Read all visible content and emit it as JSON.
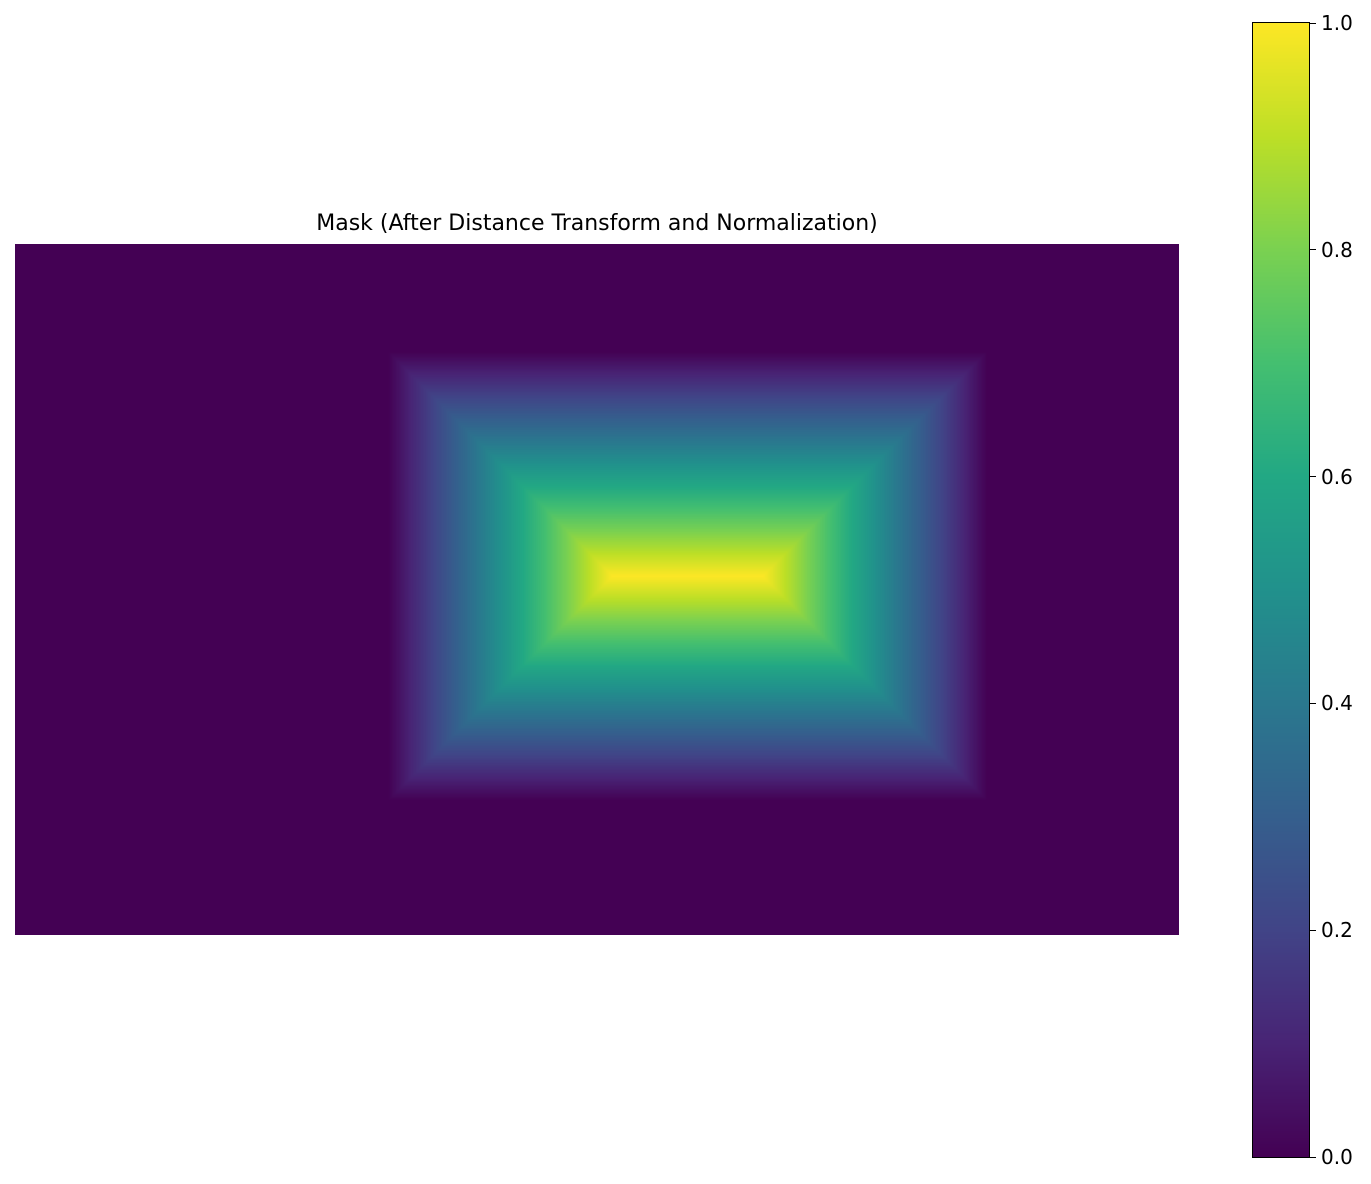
{
  "chart_data": {
    "type": "heatmap",
    "title": "Mask (After Distance Transform and Normalization)",
    "xlabel": "",
    "ylabel": "",
    "axis_visible": false,
    "colormap": "viridis",
    "value_range": [
      0,
      1
    ],
    "background_value": 0.0,
    "description_values": {
      "outside_region": 0.0,
      "region_edge": 0.0,
      "region_center": 1.0
    },
    "region": {
      "x_start_frac": 0.32,
      "x_end_frac": 0.835,
      "y_start_frac": 0.155,
      "y_end_frac": 0.805
    },
    "colorbar": {
      "location": "right",
      "ticks": [
        "0.0",
        "0.2",
        "0.4",
        "0.6",
        "0.8",
        "1.0"
      ],
      "tick_values": [
        0.0,
        0.2,
        0.4,
        0.6,
        0.8,
        1.0
      ]
    },
    "grid": false
  }
}
